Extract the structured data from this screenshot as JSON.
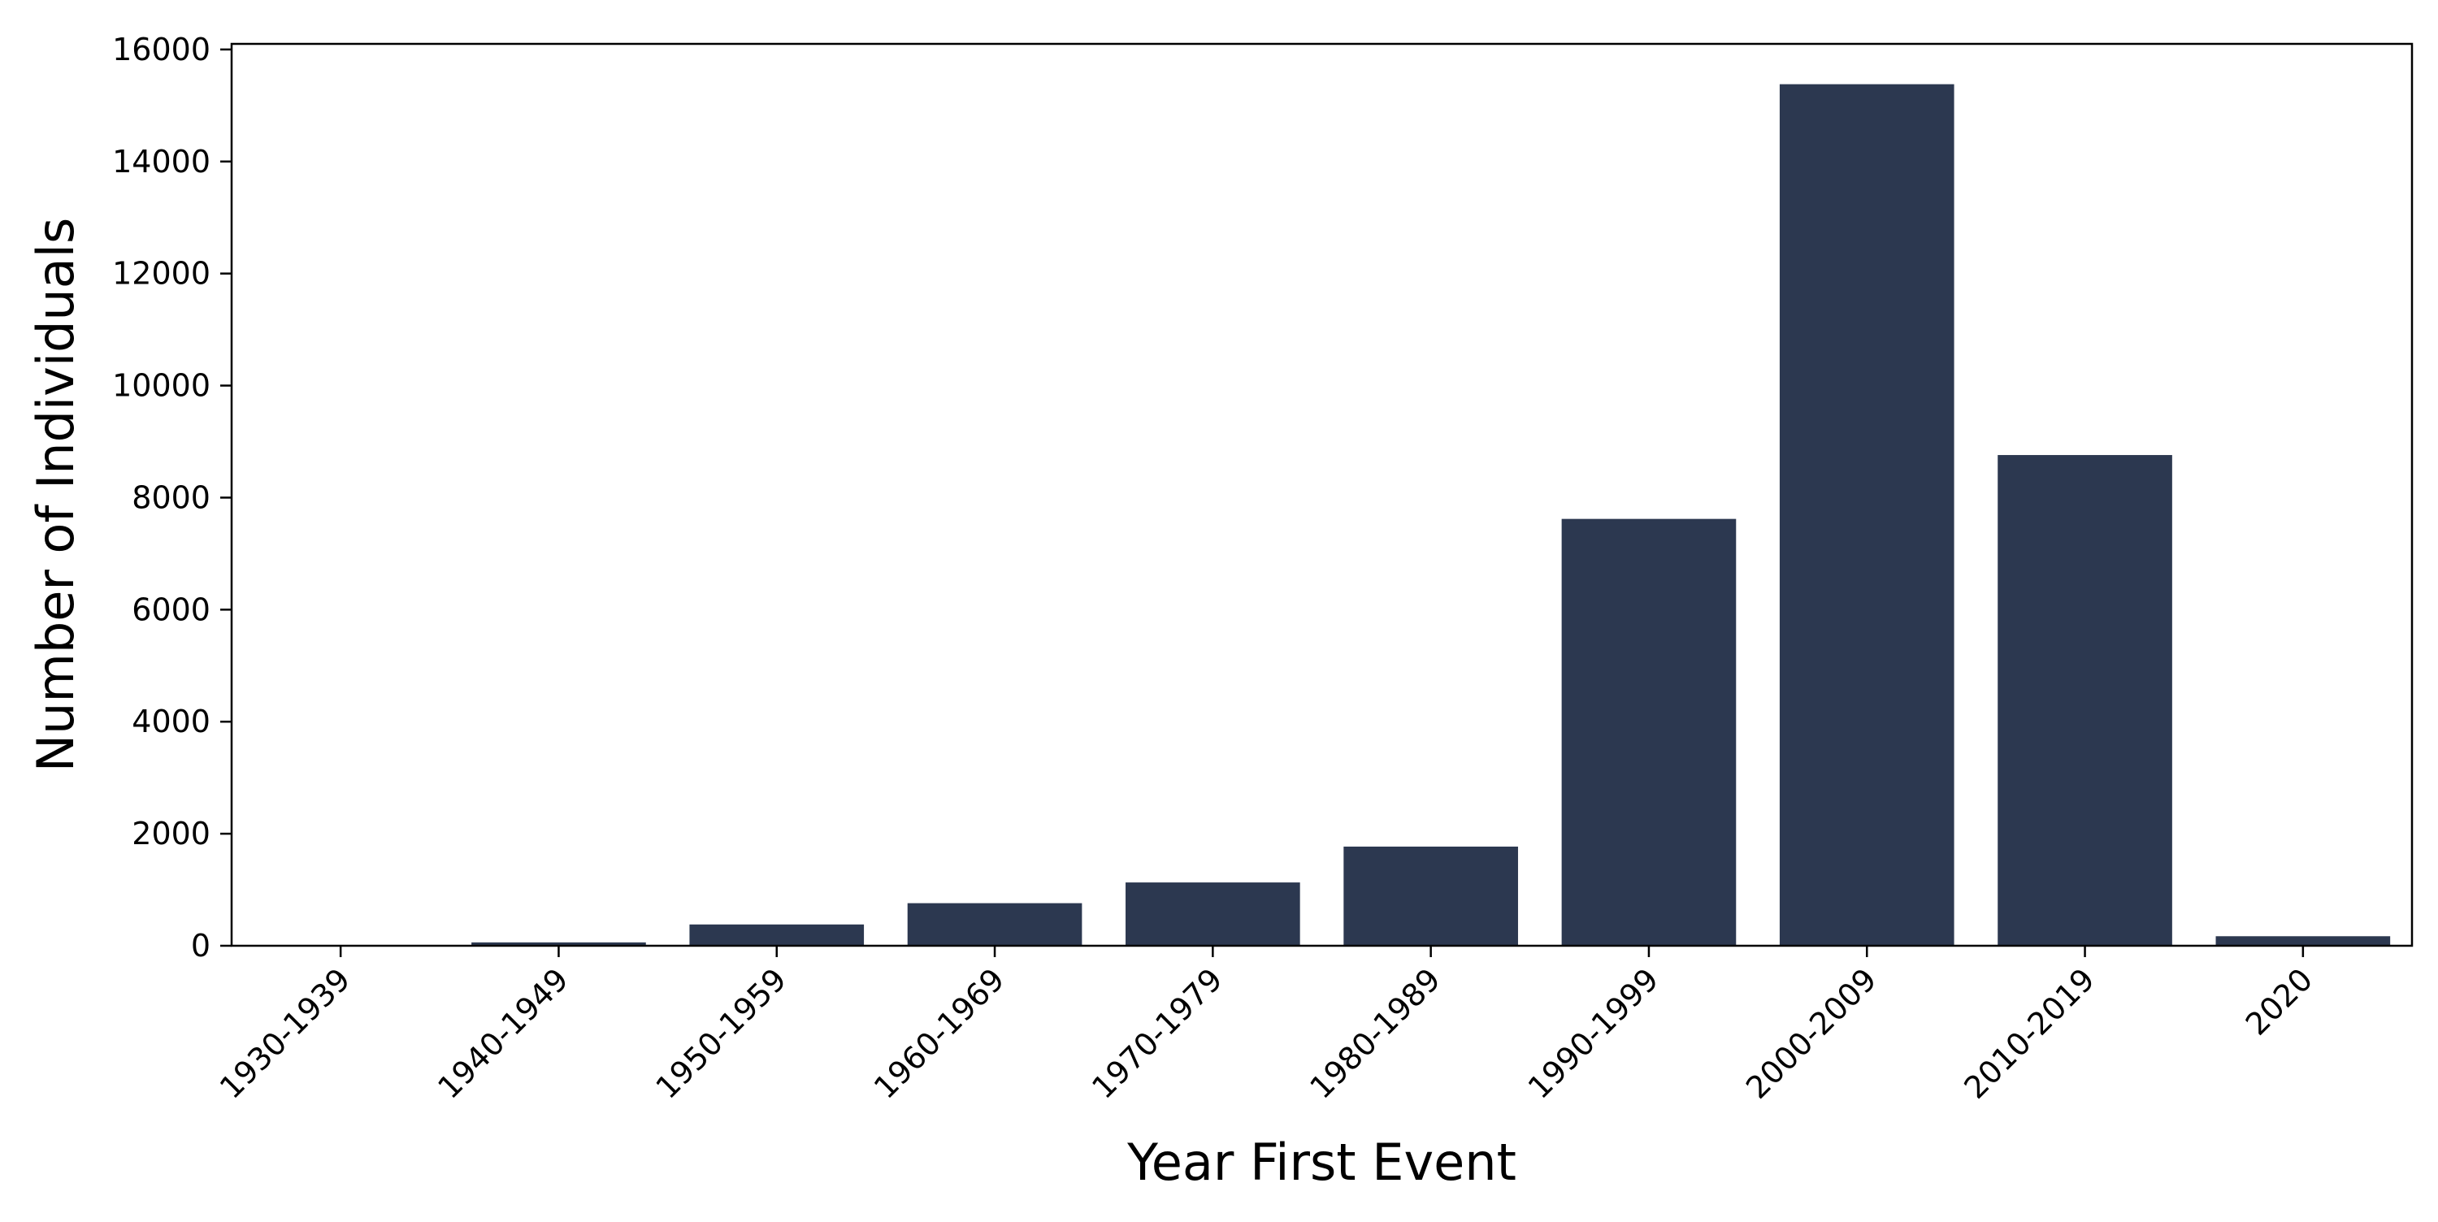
{
  "chart_data": {
    "type": "bar",
    "title": "",
    "xlabel": "Year First Event",
    "ylabel": "Number of Individuals",
    "categories": [
      "1930-1939",
      "1940-1949",
      "1950-1959",
      "1960-1969",
      "1970-1979",
      "1980-1989",
      "1990-1999",
      "2000-2009",
      "2010-2019",
      "2020"
    ],
    "values": [
      5,
      60,
      380,
      760,
      1130,
      1770,
      7620,
      15380,
      8760,
      170
    ],
    "ylim": [
      0,
      16100
    ],
    "yticks": [
      0,
      2000,
      4000,
      6000,
      8000,
      10000,
      12000,
      14000,
      16000
    ],
    "ytick_labels": [
      "0",
      "2000",
      "4000",
      "6000",
      "8000",
      "10000",
      "12000",
      "14000",
      "16000"
    ],
    "bar_color": "#2c3850",
    "grid": false,
    "legend": "none"
  }
}
